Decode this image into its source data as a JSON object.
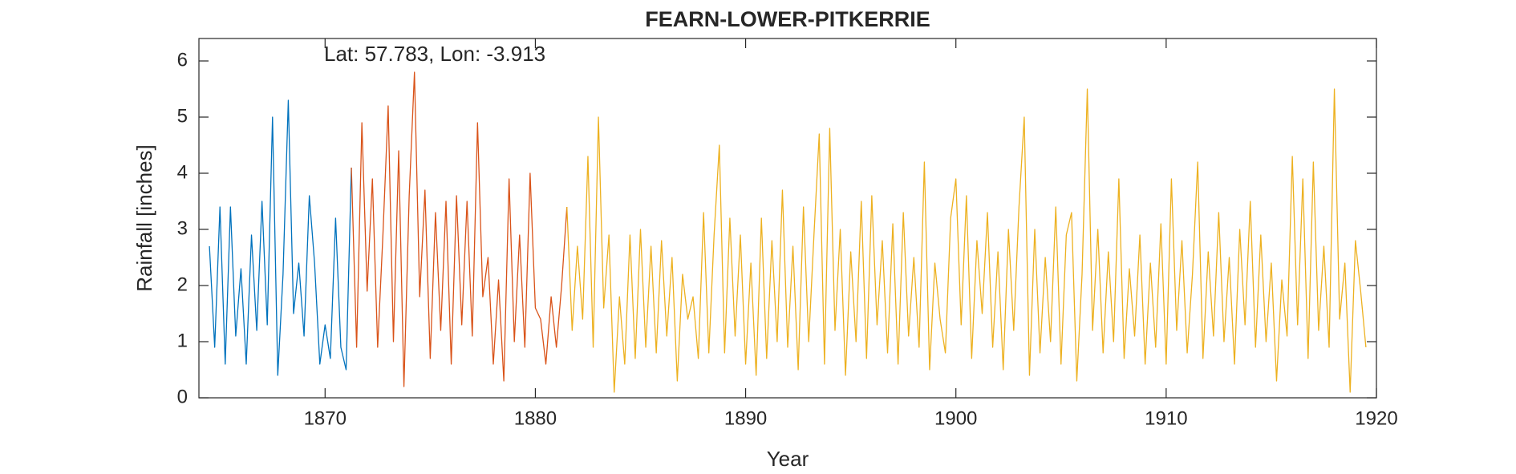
{
  "chart_data": {
    "type": "line",
    "title": "FEARN-LOWER-PITKERRIE",
    "annotation": "Lat: 57.783, Lon: -3.913",
    "xlabel": "Year",
    "ylabel": "Rainfall [inches]",
    "xlim": [
      1864,
      1920
    ],
    "xticks": [
      1870,
      1880,
      1890,
      1900,
      1910,
      1920
    ],
    "ylim": [
      0,
      6.4
    ],
    "yticks": [
      0,
      1,
      2,
      3,
      4,
      5,
      6
    ],
    "grid": false,
    "series": [
      {
        "color": "#0072BD",
        "x": [
          1864.5,
          1864.75,
          1865,
          1865.25,
          1865.5,
          1865.75,
          1866,
          1866.25,
          1866.5,
          1866.75,
          1867,
          1867.25,
          1867.5,
          1867.75,
          1868,
          1868.25,
          1868.5,
          1868.75,
          1869,
          1869.25,
          1869.5,
          1869.75,
          1870,
          1870.25,
          1870.5,
          1870.75,
          1871,
          1871.25
        ],
        "values": [
          2.7,
          0.9,
          3.4,
          0.6,
          3.4,
          1.1,
          2.3,
          0.6,
          2.9,
          1.2,
          3.5,
          1.3,
          5.0,
          0.4,
          2.2,
          5.3,
          1.5,
          2.4,
          1.1,
          3.6,
          2.4,
          0.6,
          1.3,
          0.7,
          3.2,
          0.9,
          0.5,
          4.1
        ]
      },
      {
        "color": "#D95319",
        "x": [
          1871.25,
          1871.5,
          1871.75,
          1872,
          1872.25,
          1872.5,
          1872.75,
          1873,
          1873.25,
          1873.5,
          1873.75,
          1874,
          1874.25,
          1874.5,
          1874.75,
          1875,
          1875.25,
          1875.5,
          1875.75,
          1876,
          1876.25,
          1876.5,
          1876.75,
          1877,
          1877.25,
          1877.5,
          1877.75,
          1878,
          1878.25,
          1878.5,
          1878.75,
          1879,
          1879.25,
          1879.5,
          1879.75,
          1880,
          1880.25,
          1880.5,
          1880.75,
          1881,
          1881.25,
          1881.5
        ],
        "values": [
          4.1,
          0.9,
          4.9,
          1.9,
          3.9,
          0.9,
          2.9,
          5.2,
          1.0,
          4.4,
          0.2,
          3.6,
          5.8,
          1.8,
          3.7,
          0.7,
          3.3,
          1.2,
          3.5,
          0.6,
          3.6,
          1.3,
          3.5,
          1.1,
          4.9,
          1.8,
          2.5,
          0.6,
          2.1,
          0.3,
          3.9,
          1.0,
          2.9,
          0.9,
          4.0,
          1.6,
          1.4,
          0.6,
          1.8,
          0.9,
          2.0,
          3.4
        ]
      },
      {
        "color": "#EDB120",
        "x": [
          1881.5,
          1881.75,
          1882,
          1882.25,
          1882.5,
          1882.75,
          1883,
          1883.25,
          1883.5,
          1883.75,
          1884,
          1884.25,
          1884.5,
          1884.75,
          1885,
          1885.25,
          1885.5,
          1885.75,
          1886,
          1886.25,
          1886.5,
          1886.75,
          1887,
          1887.25,
          1887.5,
          1887.75,
          1888,
          1888.25,
          1888.5,
          1888.75,
          1889,
          1889.25,
          1889.5,
          1889.75,
          1890,
          1890.25,
          1890.5,
          1890.75,
          1891,
          1891.25,
          1891.5,
          1891.75,
          1892,
          1892.25,
          1892.5,
          1892.75,
          1893,
          1893.25,
          1893.5,
          1893.75,
          1894,
          1894.25,
          1894.5,
          1894.75,
          1895,
          1895.25,
          1895.5,
          1895.75,
          1896,
          1896.25,
          1896.5,
          1896.75,
          1897,
          1897.25,
          1897.5,
          1897.75,
          1898,
          1898.25,
          1898.5,
          1898.75,
          1899,
          1899.25,
          1899.5,
          1899.75,
          1900,
          1900.25,
          1900.5,
          1900.75,
          1901,
          1901.25,
          1901.5,
          1901.75,
          1902,
          1902.25,
          1902.5,
          1902.75,
          1903,
          1903.25,
          1903.5,
          1903.75,
          1904,
          1904.25,
          1904.5,
          1904.75,
          1905,
          1905.25,
          1905.5,
          1905.75,
          1906,
          1906.25,
          1906.5,
          1906.75,
          1907,
          1907.25,
          1907.5,
          1907.75,
          1908,
          1908.25,
          1908.5,
          1908.75,
          1909,
          1909.25,
          1909.5,
          1909.75,
          1910,
          1910.25,
          1910.5,
          1910.75,
          1911,
          1911.25,
          1911.5,
          1911.75,
          1912,
          1912.25,
          1912.5,
          1912.75,
          1913,
          1913.25,
          1913.5,
          1913.75,
          1914,
          1914.25,
          1914.5,
          1914.75,
          1915,
          1915.25,
          1915.5,
          1915.75,
          1916,
          1916.25,
          1916.5,
          1916.75,
          1917,
          1917.25,
          1917.5,
          1917.75,
          1918,
          1918.25,
          1918.5,
          1918.75,
          1919,
          1919.25,
          1919.5
        ],
        "values": [
          3.4,
          1.2,
          2.7,
          1.4,
          4.3,
          0.9,
          5.0,
          1.6,
          2.9,
          0.1,
          1.8,
          0.6,
          2.9,
          0.7,
          3.0,
          0.9,
          2.7,
          0.8,
          2.8,
          1.1,
          2.5,
          0.3,
          2.2,
          1.4,
          1.8,
          0.7,
          3.3,
          0.8,
          2.9,
          4.5,
          0.8,
          3.2,
          1.1,
          2.9,
          0.6,
          2.4,
          0.4,
          3.2,
          0.7,
          2.8,
          1.0,
          3.7,
          0.9,
          2.7,
          0.5,
          3.4,
          1.0,
          2.9,
          4.7,
          0.6,
          4.8,
          1.2,
          3.0,
          0.4,
          2.6,
          1.0,
          3.5,
          0.7,
          3.6,
          1.3,
          2.8,
          0.8,
          3.1,
          0.6,
          3.3,
          1.1,
          2.5,
          0.9,
          4.2,
          0.5,
          2.4,
          1.4,
          0.8,
          3.2,
          3.9,
          1.3,
          3.6,
          0.7,
          2.8,
          1.5,
          3.3,
          0.9,
          2.6,
          0.5,
          3.0,
          1.2,
          3.4,
          5.0,
          0.4,
          3.0,
          0.8,
          2.5,
          1.0,
          3.4,
          0.6,
          2.9,
          3.3,
          0.3,
          2.2,
          5.5,
          1.2,
          3.0,
          0.8,
          2.6,
          1.0,
          3.9,
          0.7,
          2.3,
          1.1,
          2.9,
          0.6,
          2.4,
          0.9,
          3.1,
          0.6,
          3.9,
          1.2,
          2.8,
          0.8,
          2.2,
          4.2,
          0.7,
          2.6,
          1.1,
          3.3,
          1.0,
          2.5,
          0.6,
          3.0,
          1.3,
          3.5,
          0.9,
          2.9,
          1.0,
          2.4,
          0.3,
          2.1,
          1.1,
          4.3,
          1.3,
          3.9,
          0.7,
          4.2,
          1.2,
          2.7,
          0.9,
          5.5,
          1.4,
          2.4,
          0.1,
          2.8,
          1.9,
          0.9
        ]
      }
    ]
  }
}
